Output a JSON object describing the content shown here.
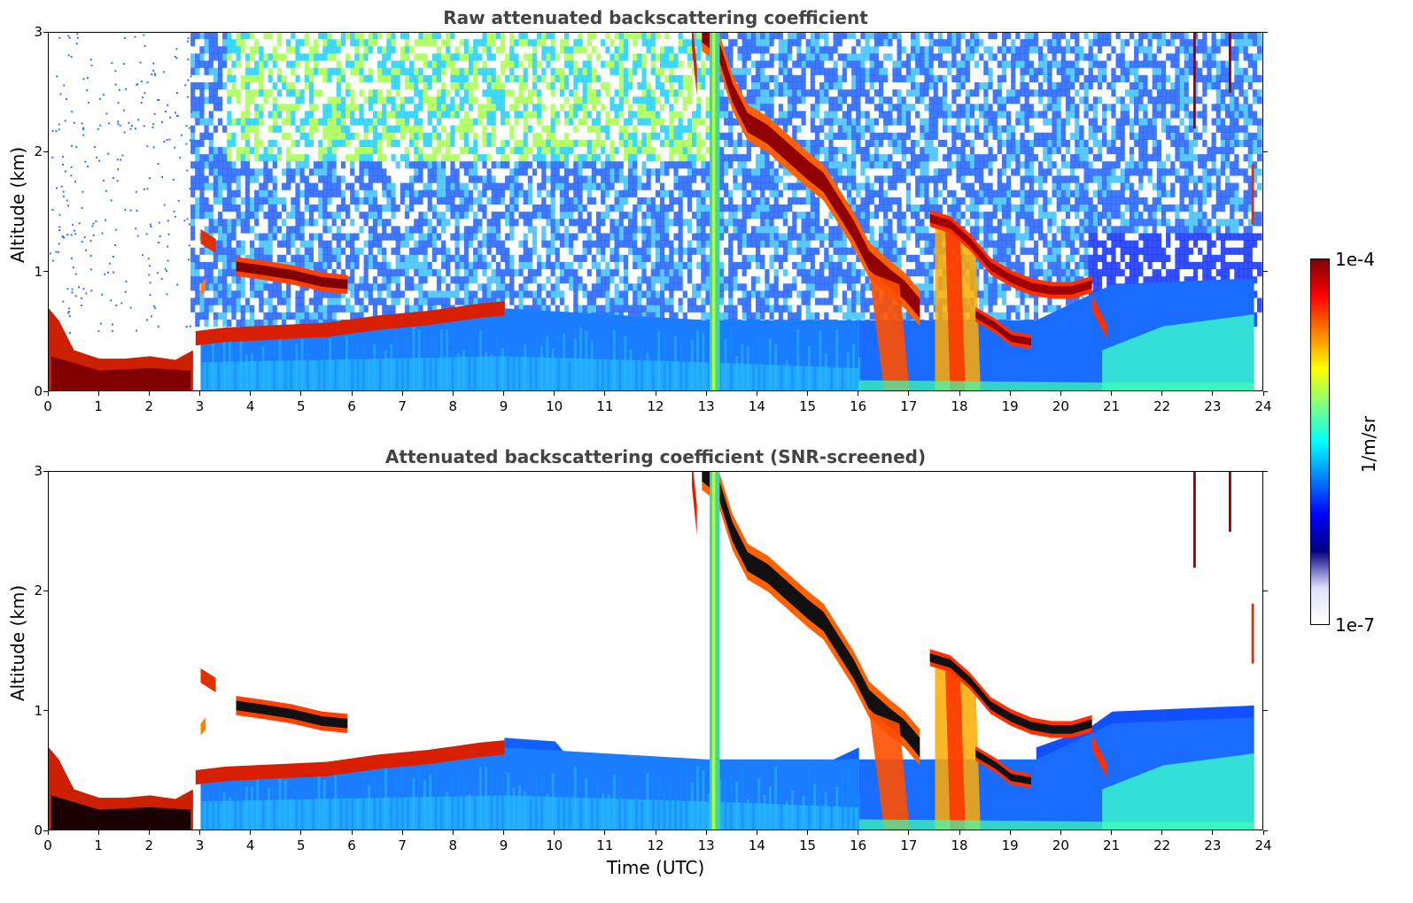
{
  "chart_data": [
    {
      "type": "heatmap",
      "title": "Raw attenuated backscattering coefficient",
      "xlabel": "",
      "ylabel": "Altitude (km)",
      "xlim": [
        0,
        24
      ],
      "ylim": [
        0,
        3
      ],
      "x_ticks": [
        "0",
        "1",
        "2",
        "3",
        "4",
        "5",
        "6",
        "7",
        "8",
        "9",
        "10",
        "11",
        "12",
        "13",
        "14",
        "15",
        "16",
        "17",
        "18",
        "19",
        "20",
        "21",
        "22",
        "23",
        "24"
      ],
      "y_ticks": [
        "0",
        "1",
        "2",
        "3"
      ],
      "colorscale": "jet",
      "features": [
        {
          "time": [
            0.0,
            2.85
          ],
          "altitude_km": [
            0.0,
            0.35
          ],
          "level": "1e-4"
        },
        {
          "time": [
            3.0,
            9.0
          ],
          "altitude_km": [
            0.3,
            0.7
          ],
          "level": "high"
        },
        {
          "time": [
            3.7,
            6.0
          ],
          "altitude_km": [
            0.85,
            1.05
          ],
          "level": "1e-4"
        },
        {
          "time": [
            12.6,
            19.5
          ],
          "altitude_km": [
            0.4,
            3.0
          ],
          "level": "1e-4"
        },
        {
          "time": [
            19.2,
            20.8
          ],
          "altitude_km": [
            0.8,
            0.95
          ],
          "level": "1e-4"
        }
      ],
      "grid": false
    },
    {
      "type": "heatmap",
      "title": "Attenuated backscattering coefficient (SNR-screened)",
      "xlabel": "Time (UTC)",
      "ylabel": "Altitude (km)",
      "xlim": [
        0,
        24
      ],
      "ylim": [
        0,
        3
      ],
      "x_ticks": [
        "0",
        "1",
        "2",
        "3",
        "4",
        "5",
        "6",
        "7",
        "8",
        "9",
        "10",
        "11",
        "12",
        "13",
        "14",
        "15",
        "16",
        "17",
        "18",
        "19",
        "20",
        "21",
        "22",
        "23",
        "24"
      ],
      "y_ticks": [
        "0",
        "1",
        "2",
        "3"
      ],
      "colorscale": "jet",
      "grid": false
    }
  ],
  "colorbar": {
    "max_label": "1e-4",
    "min_label": "1e-7",
    "unit": "1/m/sr",
    "stops": [
      "#000080",
      "#0000ff",
      "#0080ff",
      "#00ffff",
      "#80ff80",
      "#ffff00",
      "#ff8000",
      "#ff0000",
      "#800000"
    ]
  }
}
